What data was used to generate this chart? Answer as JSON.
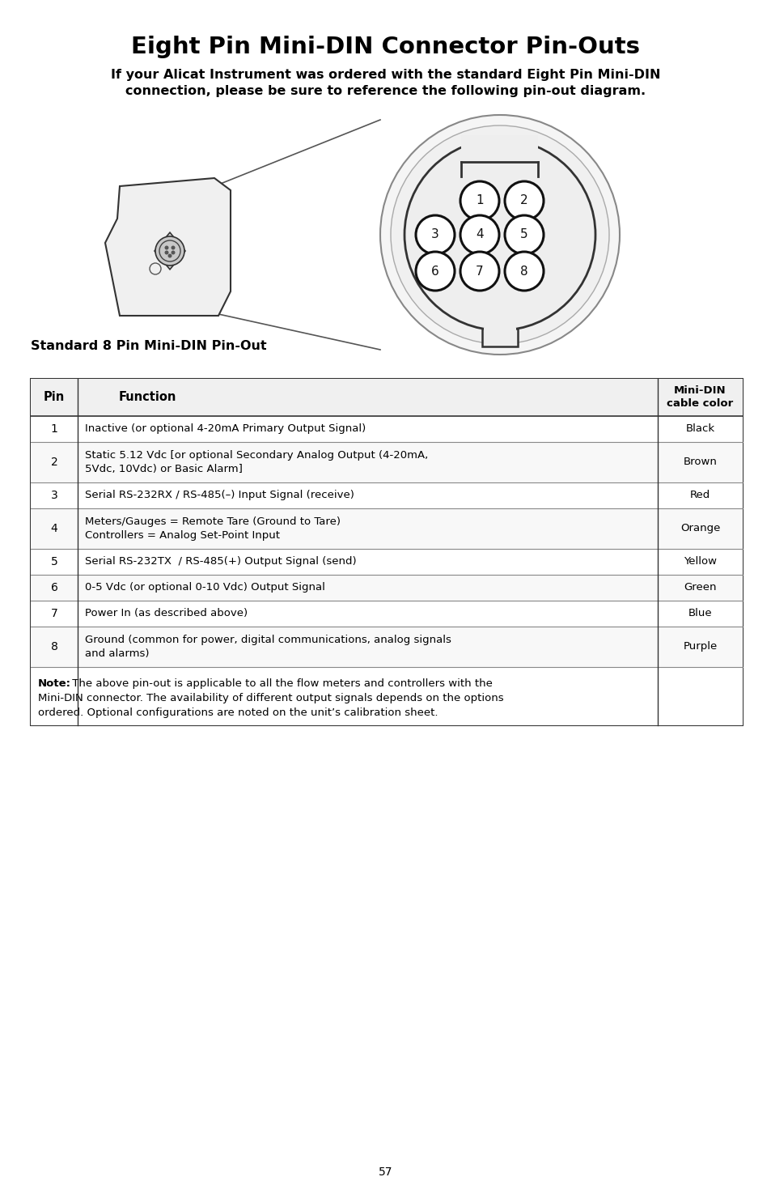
{
  "title": "Eight Pin Mini-DIN Connector Pin-Outs",
  "subtitle_line1": "If your Alicat Instrument was ordered with the standard Eight Pin Mini-DIN",
  "subtitle_line2": "connection, please be sure to reference the following pin-out diagram.",
  "diagram_label": "Standard 8 Pin Mini-DIN Pin-Out",
  "table_headers": [
    "Pin",
    "Function",
    "Mini-DIN\ncable color"
  ],
  "table_rows": [
    [
      "1",
      "Inactive (or optional 4-20mA Primary Output Signal)",
      "Black"
    ],
    [
      "2",
      "Static 5.12 Vdc [or optional Secondary Analog Output (4-20mA,\n5Vdc, 10Vdc) or Basic Alarm]",
      "Brown"
    ],
    [
      "3",
      "Serial RS-232RX / RS-485(–) Input Signal (receive)",
      "Red"
    ],
    [
      "4",
      "Meters/Gauges = Remote Tare (Ground to Tare)\nControllers = Analog Set-Point Input",
      "Orange"
    ],
    [
      "5",
      "Serial RS-232TX  / RS-485(+) Output Signal (send)",
      "Yellow"
    ],
    [
      "6",
      "0-5 Vdc (or optional 0-10 Vdc) Output Signal",
      "Green"
    ],
    [
      "7",
      "Power In (as described above)",
      "Blue"
    ],
    [
      "8",
      "Ground (common for power, digital communications, analog signals\nand alarms)",
      "Purple"
    ]
  ],
  "note_bold": "Note:",
  "note_text": " The above pin-out is applicable to all the flow meters and controllers with the Mini-DIN connector. The availability of different output signals depends on the options ordered. Optional configurations are noted on the unit’s calibration sheet.",
  "page_number": "57",
  "bg_color": "#ffffff",
  "text_color": "#000000"
}
